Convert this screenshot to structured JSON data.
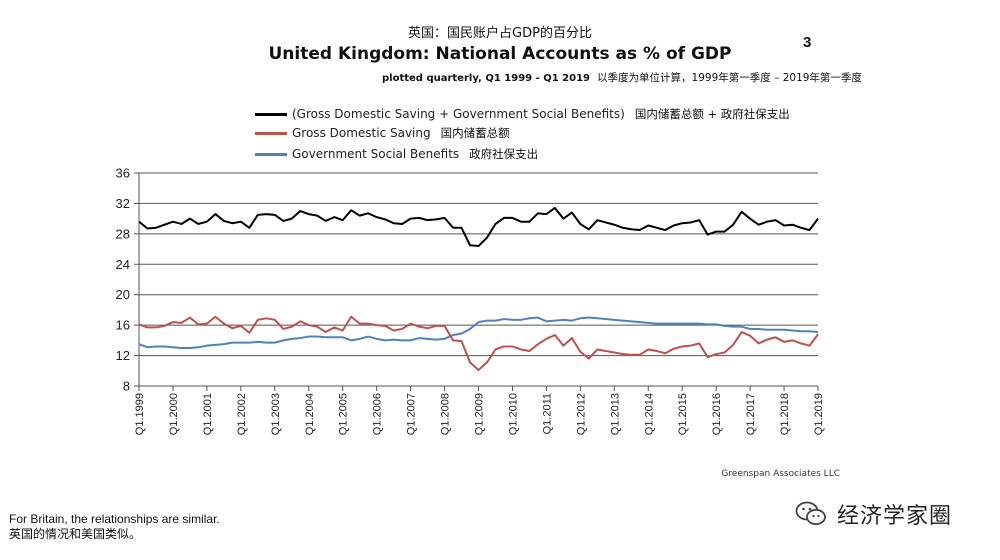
{
  "slide": {
    "number": "3",
    "title_cn": "英国：国民账户占GDP的百分比",
    "source": "Greenspan Associates LLC",
    "footer_en": "For Britain, the relationships are similar.",
    "footer_cn": "英国的情况和美国类似。",
    "brand_name": "经济学家圈",
    "brand_icon": "wechat-icon"
  },
  "chart_data": {
    "type": "line",
    "title": "United Kingdom: National Accounts as % of GDP",
    "subtitle": "plotted quarterly, Q1 1999 - Q1 2019",
    "subtitle_cn": "以季度为单位计算，1999年第一季度 – 2019年第一季度",
    "xlabel": "",
    "ylabel": "",
    "ylim": [
      8,
      36
    ],
    "yticks": [
      "8",
      "12",
      "16",
      "20",
      "24",
      "28",
      "32",
      "36"
    ],
    "xticks": [
      "Q1.1999",
      "Q1.2000",
      "Q1.2001",
      "Q1.2002",
      "Q1.2003",
      "Q1.2004",
      "Q1.2005",
      "Q1.2006",
      "Q1.2007",
      "Q1.2008",
      "Q1.2009",
      "Q1.2010",
      "Q1.2011",
      "Q1.2012",
      "Q1.2013",
      "Q1.2014",
      "Q1.2015",
      "Q1.2016",
      "Q1.2017",
      "Q1.2018",
      "Q1.2019"
    ],
    "x_start": "Q1 1999",
    "frequency": "quarterly",
    "grid": "horizontal",
    "legend_position": "top",
    "series": [
      {
        "name": "(Gross Domestic Saving + Government Social Benefits)",
        "name_cn": "国内储蓄总额 + 政府社保支出",
        "color": "#000000",
        "values": [
          29.6,
          28.7,
          28.8,
          29.2,
          29.6,
          29.3,
          30.0,
          29.3,
          29.6,
          30.6,
          29.7,
          29.4,
          29.6,
          28.8,
          30.5,
          30.6,
          30.5,
          29.7,
          30.0,
          31.0,
          30.6,
          30.4,
          29.7,
          30.2,
          29.8,
          31.1,
          30.4,
          30.7,
          30.2,
          29.9,
          29.4,
          29.3,
          30.0,
          30.1,
          29.8,
          29.9,
          30.1,
          28.8,
          28.8,
          26.5,
          26.4,
          27.5,
          29.3,
          30.1,
          30.1,
          29.6,
          29.6,
          30.7,
          30.6,
          31.4,
          30.0,
          30.8,
          29.3,
          28.6,
          29.8,
          29.5,
          29.2,
          28.8,
          28.6,
          28.5,
          29.1,
          28.8,
          28.5,
          29.1,
          29.4,
          29.5,
          29.8,
          27.9,
          28.3,
          28.3,
          29.2,
          30.9,
          30.0,
          29.2,
          29.6,
          29.8,
          29.1,
          29.2,
          28.8,
          28.5,
          30.0
        ]
      },
      {
        "name": "Gross Domestic Saving",
        "name_cn": "国内储蓄总额",
        "color": "#c0504d",
        "values": [
          16.1,
          15.7,
          15.7,
          15.9,
          16.4,
          16.3,
          17.0,
          16.1,
          16.2,
          17.1,
          16.2,
          15.6,
          15.9,
          15.0,
          16.7,
          16.9,
          16.7,
          15.5,
          15.8,
          16.5,
          16.0,
          15.8,
          15.1,
          15.7,
          15.3,
          17.1,
          16.2,
          16.2,
          16.0,
          15.9,
          15.3,
          15.5,
          16.2,
          15.8,
          15.6,
          15.9,
          15.9,
          14.0,
          13.9,
          11.1,
          10.1,
          11.1,
          12.8,
          13.2,
          13.2,
          12.8,
          12.6,
          13.5,
          14.2,
          14.7,
          13.3,
          14.3,
          12.5,
          11.6,
          12.8,
          12.6,
          12.4,
          12.2,
          12.1,
          12.1,
          12.8,
          12.6,
          12.3,
          12.9,
          13.2,
          13.3,
          13.6,
          11.8,
          12.2,
          12.4,
          13.4,
          15.1,
          14.6,
          13.6,
          14.1,
          14.4,
          13.8,
          14.0,
          13.6,
          13.3,
          14.8
        ]
      },
      {
        "name": "Government Social Benefits",
        "name_cn": "政府社保支出",
        "color": "#4f81bd",
        "values": [
          13.5,
          13.1,
          13.2,
          13.2,
          13.1,
          13.0,
          13.0,
          13.1,
          13.3,
          13.4,
          13.5,
          13.7,
          13.7,
          13.7,
          13.8,
          13.7,
          13.7,
          14.0,
          14.2,
          14.3,
          14.5,
          14.5,
          14.4,
          14.4,
          14.4,
          14.0,
          14.2,
          14.5,
          14.2,
          14.0,
          14.1,
          14.0,
          14.0,
          14.3,
          14.2,
          14.1,
          14.2,
          14.7,
          14.9,
          15.5,
          16.4,
          16.6,
          16.6,
          16.8,
          16.7,
          16.7,
          16.9,
          17.0,
          16.5,
          16.6,
          16.7,
          16.6,
          16.9,
          17.0,
          16.9,
          16.8,
          16.7,
          16.6,
          16.5,
          16.4,
          16.3,
          16.2,
          16.2,
          16.2,
          16.2,
          16.2,
          16.2,
          16.1,
          16.1,
          15.9,
          15.8,
          15.8,
          15.5,
          15.5,
          15.4,
          15.4,
          15.4,
          15.3,
          15.2,
          15.2,
          15.1
        ]
      }
    ]
  }
}
